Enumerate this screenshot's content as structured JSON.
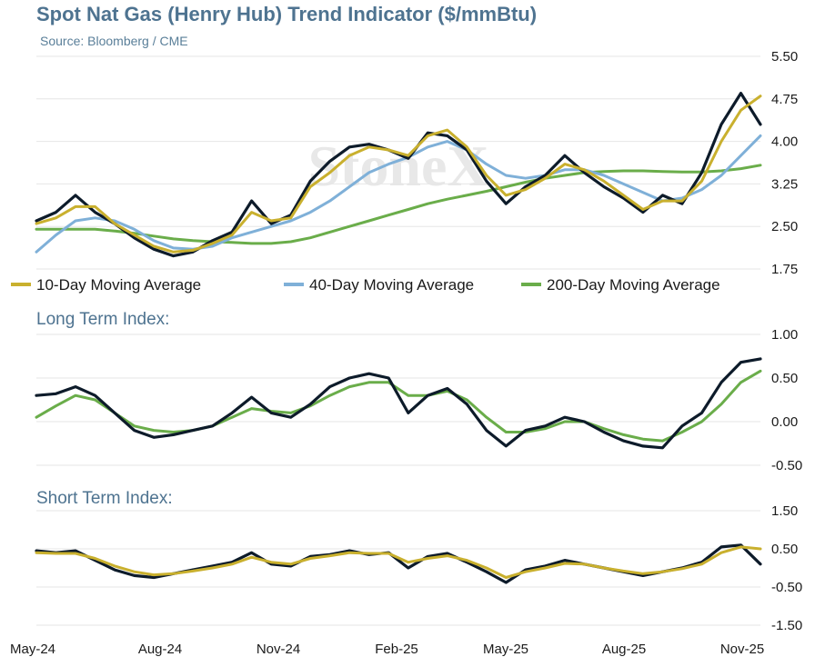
{
  "title": "Spot Nat Gas (Henry Hub) Trend Indicator ($/mmBtu)",
  "subtitle": "Source: Bloomberg / CME",
  "watermark": "StoneX",
  "colors": {
    "price": "#0d1b2a",
    "ma10": "#c9b02e",
    "ma40": "#7fb0d8",
    "ma200": "#6aad4a",
    "longTermSmooth": "#6aad4a",
    "shortTermSmooth": "#c9b02e",
    "panelTitle": "#4e7390"
  },
  "x_ticks": [
    "May-24",
    "Aug-24",
    "Nov-24",
    "Feb-25",
    "May-25",
    "Aug-25",
    "Nov-25"
  ],
  "chart_data": [
    {
      "type": "line",
      "title": "Spot Nat Gas (Henry Hub) Trend Indicator ($/mmBtu)",
      "ylim": [
        1.75,
        5.5
      ],
      "ticks": [
        "5.50",
        "4.75",
        "4.00",
        "3.25",
        "2.50",
        "1.75"
      ],
      "legend": [
        "10-Day Moving Average",
        "40-Day Moving Average",
        "200-Day Moving Average"
      ],
      "x": [
        0,
        0.5,
        1,
        1.5,
        2,
        2.5,
        3,
        3.5,
        4,
        4.5,
        5,
        5.5,
        6,
        6.5,
        7,
        7.5,
        8,
        8.5,
        9,
        9.5,
        10,
        10.5,
        11,
        11.5,
        12,
        12.5,
        13,
        13.5,
        14,
        14.5,
        15,
        15.5,
        16,
        16.5,
        17,
        17.5,
        18,
        18.5
      ],
      "series": [
        {
          "name": "Spot",
          "values": [
            2.6,
            2.75,
            3.05,
            2.75,
            2.55,
            2.3,
            2.1,
            1.98,
            2.05,
            2.25,
            2.4,
            2.95,
            2.55,
            2.7,
            3.3,
            3.65,
            3.9,
            3.95,
            3.85,
            3.7,
            4.15,
            4.1,
            3.85,
            3.3,
            2.9,
            3.2,
            3.4,
            3.75,
            3.45,
            3.2,
            3.0,
            2.75,
            3.05,
            2.9,
            3.45,
            4.3,
            4.85,
            4.3
          ]
        },
        {
          "name": "10-Day Moving Average",
          "values": [
            2.55,
            2.65,
            2.85,
            2.85,
            2.55,
            2.35,
            2.15,
            2.05,
            2.08,
            2.2,
            2.35,
            2.75,
            2.6,
            2.65,
            3.2,
            3.45,
            3.75,
            3.9,
            3.85,
            3.75,
            4.1,
            4.2,
            3.9,
            3.4,
            3.05,
            3.15,
            3.35,
            3.6,
            3.5,
            3.3,
            3.05,
            2.8,
            2.95,
            2.95,
            3.3,
            4.0,
            4.55,
            4.8
          ]
        },
        {
          "name": "40-Day Moving Average",
          "values": [
            2.05,
            2.35,
            2.6,
            2.65,
            2.6,
            2.45,
            2.25,
            2.12,
            2.1,
            2.15,
            2.3,
            2.4,
            2.5,
            2.6,
            2.75,
            2.95,
            3.2,
            3.45,
            3.6,
            3.72,
            3.9,
            4.0,
            3.85,
            3.6,
            3.4,
            3.35,
            3.4,
            3.5,
            3.5,
            3.4,
            3.25,
            3.1,
            2.95,
            3.0,
            3.15,
            3.4,
            3.75,
            4.1
          ]
        },
        {
          "name": "200-Day Moving Average",
          "values": [
            2.45,
            2.45,
            2.45,
            2.45,
            2.42,
            2.38,
            2.33,
            2.28,
            2.25,
            2.23,
            2.22,
            2.2,
            2.2,
            2.23,
            2.3,
            2.4,
            2.5,
            2.6,
            2.7,
            2.8,
            2.9,
            2.98,
            3.05,
            3.12,
            3.2,
            3.28,
            3.35,
            3.4,
            3.45,
            3.47,
            3.48,
            3.48,
            3.47,
            3.46,
            3.46,
            3.48,
            3.52,
            3.58
          ]
        }
      ]
    },
    {
      "type": "line",
      "title": "Long Term Index:",
      "ylim": [
        -0.5,
        1.0
      ],
      "ticks": [
        "1.00",
        "0.50",
        "0.00",
        "-0.50"
      ],
      "x": [
        0,
        0.5,
        1,
        1.5,
        2,
        2.5,
        3,
        3.5,
        4,
        4.5,
        5,
        5.5,
        6,
        6.5,
        7,
        7.5,
        8,
        8.5,
        9,
        9.5,
        10,
        10.5,
        11,
        11.5,
        12,
        12.5,
        13,
        13.5,
        14,
        14.5,
        15,
        15.5,
        16,
        16.5,
        17,
        17.5,
        18,
        18.5
      ],
      "series": [
        {
          "name": "Long Term Index",
          "values": [
            0.3,
            0.32,
            0.4,
            0.3,
            0.1,
            -0.1,
            -0.18,
            -0.15,
            -0.1,
            -0.05,
            0.1,
            0.28,
            0.1,
            0.05,
            0.2,
            0.4,
            0.5,
            0.55,
            0.5,
            0.1,
            0.3,
            0.38,
            0.2,
            -0.1,
            -0.28,
            -0.1,
            -0.05,
            0.05,
            0.0,
            -0.12,
            -0.22,
            -0.28,
            -0.3,
            -0.05,
            0.1,
            0.45,
            0.68,
            0.72
          ]
        },
        {
          "name": "Long Term Index (smoothed)",
          "values": [
            0.05,
            0.18,
            0.3,
            0.25,
            0.1,
            -0.05,
            -0.1,
            -0.12,
            -0.1,
            -0.05,
            0.05,
            0.15,
            0.12,
            0.1,
            0.18,
            0.3,
            0.4,
            0.45,
            0.45,
            0.3,
            0.3,
            0.35,
            0.25,
            0.05,
            -0.12,
            -0.12,
            -0.08,
            0.0,
            0.0,
            -0.08,
            -0.15,
            -0.2,
            -0.22,
            -0.12,
            0.0,
            0.2,
            0.45,
            0.58
          ]
        }
      ]
    },
    {
      "type": "line",
      "title": "Short Term Index:",
      "ylim": [
        -1.5,
        1.5
      ],
      "ticks": [
        "1.50",
        "0.50",
        "-0.50",
        "-1.50"
      ],
      "x": [
        0,
        0.5,
        1,
        1.5,
        2,
        2.5,
        3,
        3.5,
        4,
        4.5,
        5,
        5.5,
        6,
        6.5,
        7,
        7.5,
        8,
        8.5,
        9,
        9.5,
        10,
        10.5,
        11,
        11.5,
        12,
        12.5,
        13,
        13.5,
        14,
        14.5,
        15,
        15.5,
        16,
        16.5,
        17,
        17.5,
        18,
        18.5
      ],
      "series": [
        {
          "name": "Short Term Index",
          "values": [
            0.45,
            0.4,
            0.45,
            0.2,
            -0.05,
            -0.2,
            -0.25,
            -0.15,
            -0.05,
            0.05,
            0.15,
            0.4,
            0.1,
            0.05,
            0.3,
            0.35,
            0.45,
            0.35,
            0.4,
            0.0,
            0.3,
            0.38,
            0.15,
            -0.1,
            -0.38,
            -0.05,
            0.05,
            0.2,
            0.1,
            0.0,
            -0.1,
            -0.2,
            -0.1,
            0.0,
            0.15,
            0.55,
            0.6,
            0.1
          ]
        },
        {
          "name": "Short Term Index (smoothed)",
          "values": [
            0.4,
            0.38,
            0.38,
            0.25,
            0.05,
            -0.1,
            -0.18,
            -0.15,
            -0.08,
            0.0,
            0.1,
            0.28,
            0.15,
            0.1,
            0.25,
            0.32,
            0.4,
            0.38,
            0.38,
            0.15,
            0.25,
            0.32,
            0.2,
            0.0,
            -0.25,
            -0.1,
            0.0,
            0.12,
            0.1,
            0.0,
            -0.08,
            -0.15,
            -0.1,
            -0.02,
            0.1,
            0.4,
            0.55,
            0.5
          ]
        }
      ]
    }
  ]
}
